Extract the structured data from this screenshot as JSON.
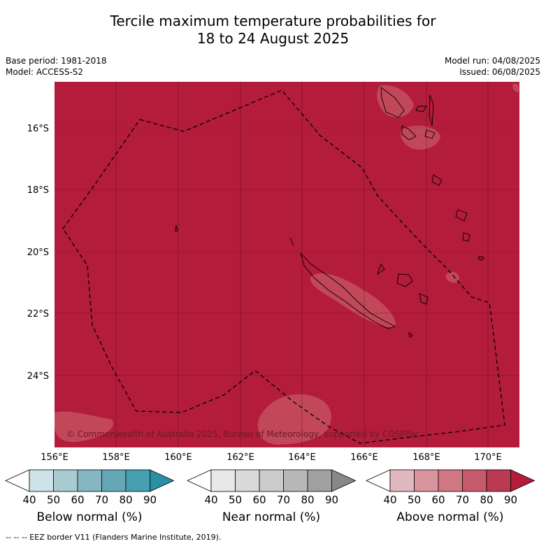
{
  "title": {
    "line1": "Tercile maximum temperature probabilities for",
    "line2": "18 to 24 August 2025"
  },
  "meta": {
    "base_period": "Base period: 1981-2018",
    "model": "Model: ACCESS-S2",
    "model_run": "Model run: 04/08/2025",
    "issued": "Issued: 06/08/2025"
  },
  "map": {
    "lat_ticks": [
      "16°S",
      "18°S",
      "20°S",
      "22°S",
      "24°S"
    ],
    "lon_ticks": [
      "156°E",
      "158°E",
      "160°E",
      "162°E",
      "164°E",
      "166°E",
      "168°E",
      "170°E"
    ],
    "dominant_category": "Above normal",
    "dominant_color": "#b31c3a",
    "copyright": "© Commonwealth of Australia 2025, Bureau of Meteorology, supported by COSPPac"
  },
  "colorbars": [
    {
      "label": "Below normal (%)",
      "ticks": [
        "40",
        "50",
        "60",
        "70",
        "80",
        "90"
      ],
      "colors": [
        "#ffffff",
        "#cde3e8",
        "#a8cad1",
        "#86b6c2",
        "#65a7b4",
        "#46a0b1",
        "#2a8fa5"
      ]
    },
    {
      "label": "Near normal (%)",
      "ticks": [
        "40",
        "50",
        "60",
        "70",
        "80",
        "90"
      ],
      "colors": [
        "#ffffff",
        "#e8e8e8",
        "#dadada",
        "#cccccc",
        "#b8b8b8",
        "#a0a0a0",
        "#888888"
      ]
    },
    {
      "label": "Above normal (%)",
      "ticks": [
        "40",
        "50",
        "60",
        "70",
        "80",
        "90"
      ],
      "colors": [
        "#ffffff",
        "#e1b8c0",
        "#d9959e",
        "#cf7882",
        "#c45b6b",
        "#b93a52",
        "#b31c3a"
      ]
    }
  ],
  "footer": "--  --  -- EEZ border V11 (Flanders Marine Institute, 2019)."
}
